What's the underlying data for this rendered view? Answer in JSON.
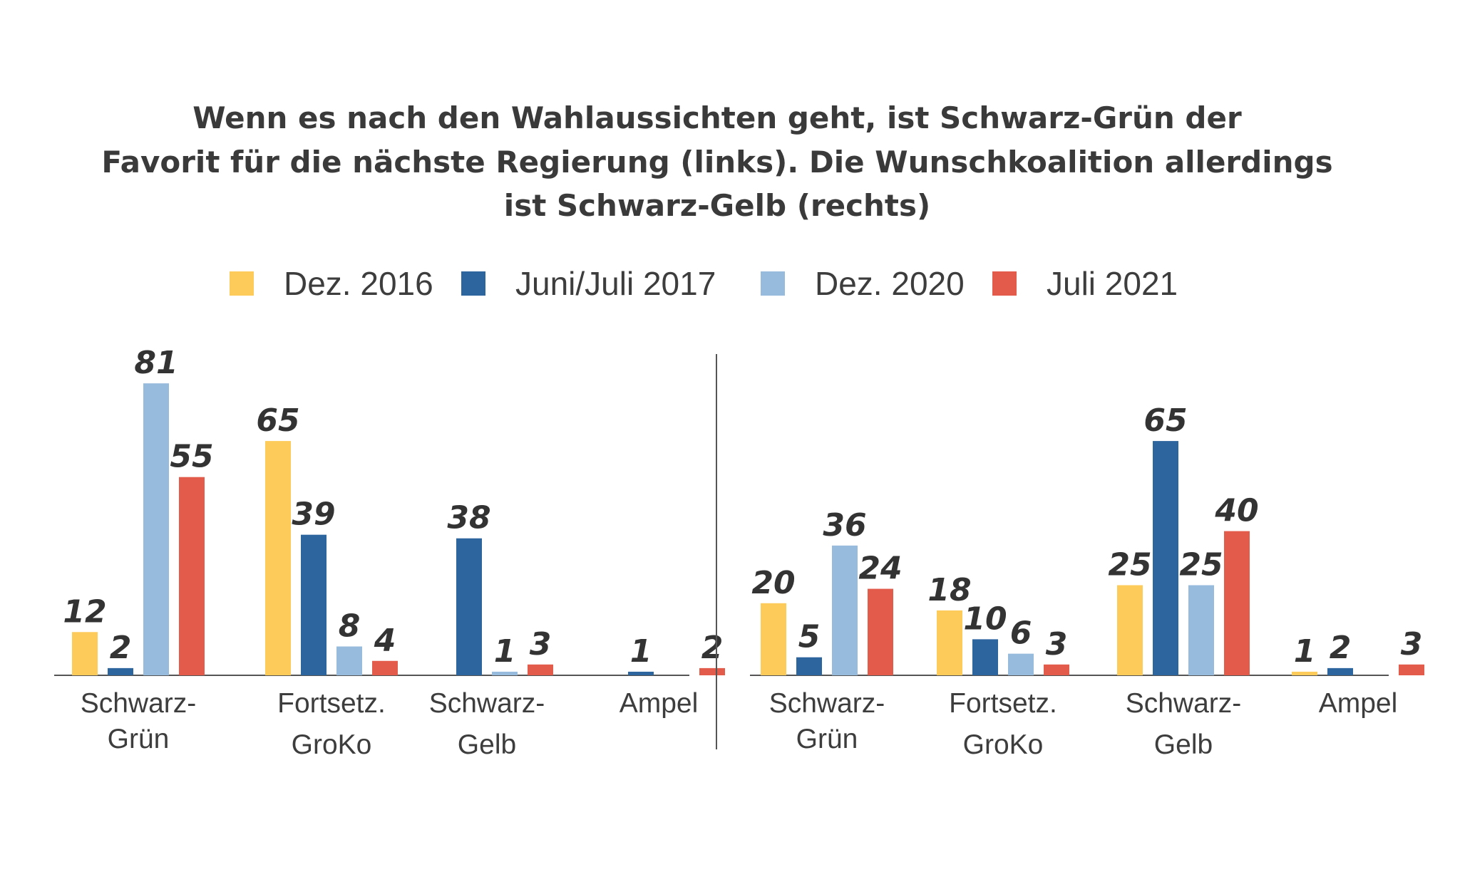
{
  "chart_data": {
    "type": "bar",
    "title_lines": [
      "Wenn es nach den Wahlaussichten geht, ist Schwarz-Grün der",
      "Favorit für die nächste Regierung (links). Die Wunschkoalition allerdings",
      "ist Schwarz-Gelb (rechts)"
    ],
    "legend": [
      {
        "label": "Dez. 2016",
        "color": "#FDCB5A"
      },
      {
        "label": "Juni/Juli 2017",
        "color": "#2D659F"
      },
      {
        "label": "Dez. 2020",
        "color": "#97BBDD"
      },
      {
        "label": "Juli 2021",
        "color": "#E25B4B"
      }
    ],
    "legend_placement": "top",
    "panels": [
      {
        "categories": [
          {
            "lines": [
              "Schwarz-",
              "Grün"
            ]
          },
          {
            "lines": [
              "Fortsetz.",
              "GroKo"
            ]
          },
          {
            "lines": [
              "Schwarz-",
              "Gelb"
            ]
          },
          {
            "lines": [
              "Ampel"
            ]
          }
        ],
        "series": [
          {
            "values": [
              12,
              65,
              null,
              null
            ],
            "labels": [
              "12",
              "65",
              "",
              ""
            ]
          },
          {
            "values": [
              2,
              39,
              38,
              1
            ],
            "labels": [
              "2",
              "39",
              "38",
              "1"
            ]
          },
          {
            "values": [
              81,
              8,
              1,
              null
            ],
            "labels": [
              "81",
              "8",
              "1",
              ""
            ]
          },
          {
            "values": [
              55,
              4,
              3,
              2
            ],
            "labels": [
              "55",
              "4",
              "3",
              "2"
            ]
          }
        ]
      },
      {
        "categories": [
          {
            "lines": [
              "Schwarz-",
              "Grün"
            ]
          },
          {
            "lines": [
              "Fortsetz.",
              "GroKo"
            ]
          },
          {
            "lines": [
              "Schwarz-",
              "Gelb"
            ]
          },
          {
            "lines": [
              "Ampel"
            ]
          }
        ],
        "series": [
          {
            "values": [
              20,
              18,
              25,
              1
            ],
            "labels": [
              "20",
              "18",
              "25",
              "1"
            ]
          },
          {
            "values": [
              5,
              10,
              65,
              2
            ],
            "labels": [
              "5",
              "10",
              "65",
              "2"
            ]
          },
          {
            "values": [
              36,
              6,
              25,
              null
            ],
            "labels": [
              "36",
              "6",
              "25",
              ""
            ]
          },
          {
            "values": [
              24,
              3,
              40,
              3
            ],
            "labels": [
              "24",
              "3",
              "40",
              "3"
            ]
          }
        ]
      }
    ],
    "ylim": [
      0,
      81
    ],
    "grid": false
  }
}
